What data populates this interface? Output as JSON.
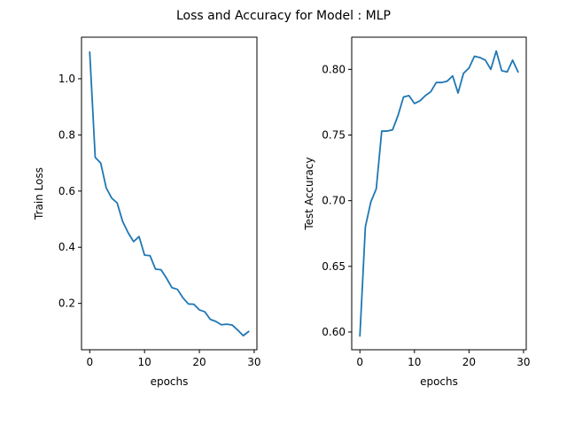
{
  "figure": {
    "suptitle": "Loss and Accuracy for Model : MLP"
  },
  "colors": {
    "series": "#1f77b4",
    "axis": "#000000",
    "background": "#ffffff"
  },
  "chart_data": [
    {
      "type": "line",
      "title": "",
      "xlabel": "epochs",
      "ylabel": "Train Loss",
      "xlim": [
        -1.5,
        30.5
      ],
      "ylim": [
        0.035,
        1.148
      ],
      "xticks": [
        0,
        10,
        20,
        30
      ],
      "yticks": [
        0.2,
        0.4,
        0.6,
        0.8,
        1.0
      ],
      "ytick_labels": [
        "0.2",
        "0.4",
        "0.6",
        "0.8",
        "1.0"
      ],
      "grid": false,
      "legend": "none",
      "series": [
        {
          "x": [
            0,
            1,
            2,
            3,
            4,
            5,
            6,
            7,
            8,
            9,
            10,
            11,
            12,
            13,
            14,
            15,
            16,
            17,
            18,
            19,
            20,
            21,
            22,
            23,
            24,
            25,
            26,
            27,
            28,
            29
          ],
          "values": [
            1.095,
            0.72,
            0.7,
            0.612,
            0.575,
            0.558,
            0.492,
            0.452,
            0.42,
            0.438,
            0.372,
            0.37,
            0.322,
            0.32,
            0.29,
            0.256,
            0.25,
            0.22,
            0.198,
            0.197,
            0.177,
            0.17,
            0.143,
            0.136,
            0.124,
            0.126,
            0.123,
            0.105,
            0.085,
            0.1
          ]
        }
      ]
    },
    {
      "type": "line",
      "title": "",
      "xlabel": "epochs",
      "ylabel": "Test Accuracy",
      "xlim": [
        -1.5,
        30.5
      ],
      "ylim": [
        0.5865,
        0.8245
      ],
      "xticks": [
        0,
        10,
        20,
        30
      ],
      "yticks": [
        0.6,
        0.65,
        0.7,
        0.75,
        0.8
      ],
      "ytick_labels": [
        "0.60",
        "0.65",
        "0.70",
        "0.75",
        "0.80"
      ],
      "grid": false,
      "legend": "none",
      "series": [
        {
          "x": [
            0,
            1,
            2,
            3,
            4,
            5,
            6,
            7,
            8,
            9,
            10,
            11,
            12,
            13,
            14,
            15,
            16,
            17,
            18,
            19,
            20,
            21,
            22,
            23,
            24,
            25,
            26,
            27,
            28,
            29
          ],
          "values": [
            0.597,
            0.68,
            0.699,
            0.709,
            0.753,
            0.753,
            0.754,
            0.765,
            0.779,
            0.78,
            0.774,
            0.776,
            0.78,
            0.783,
            0.79,
            0.79,
            0.791,
            0.795,
            0.782,
            0.797,
            0.801,
            0.81,
            0.809,
            0.807,
            0.8,
            0.814,
            0.799,
            0.798,
            0.807,
            0.798
          ]
        }
      ]
    }
  ]
}
